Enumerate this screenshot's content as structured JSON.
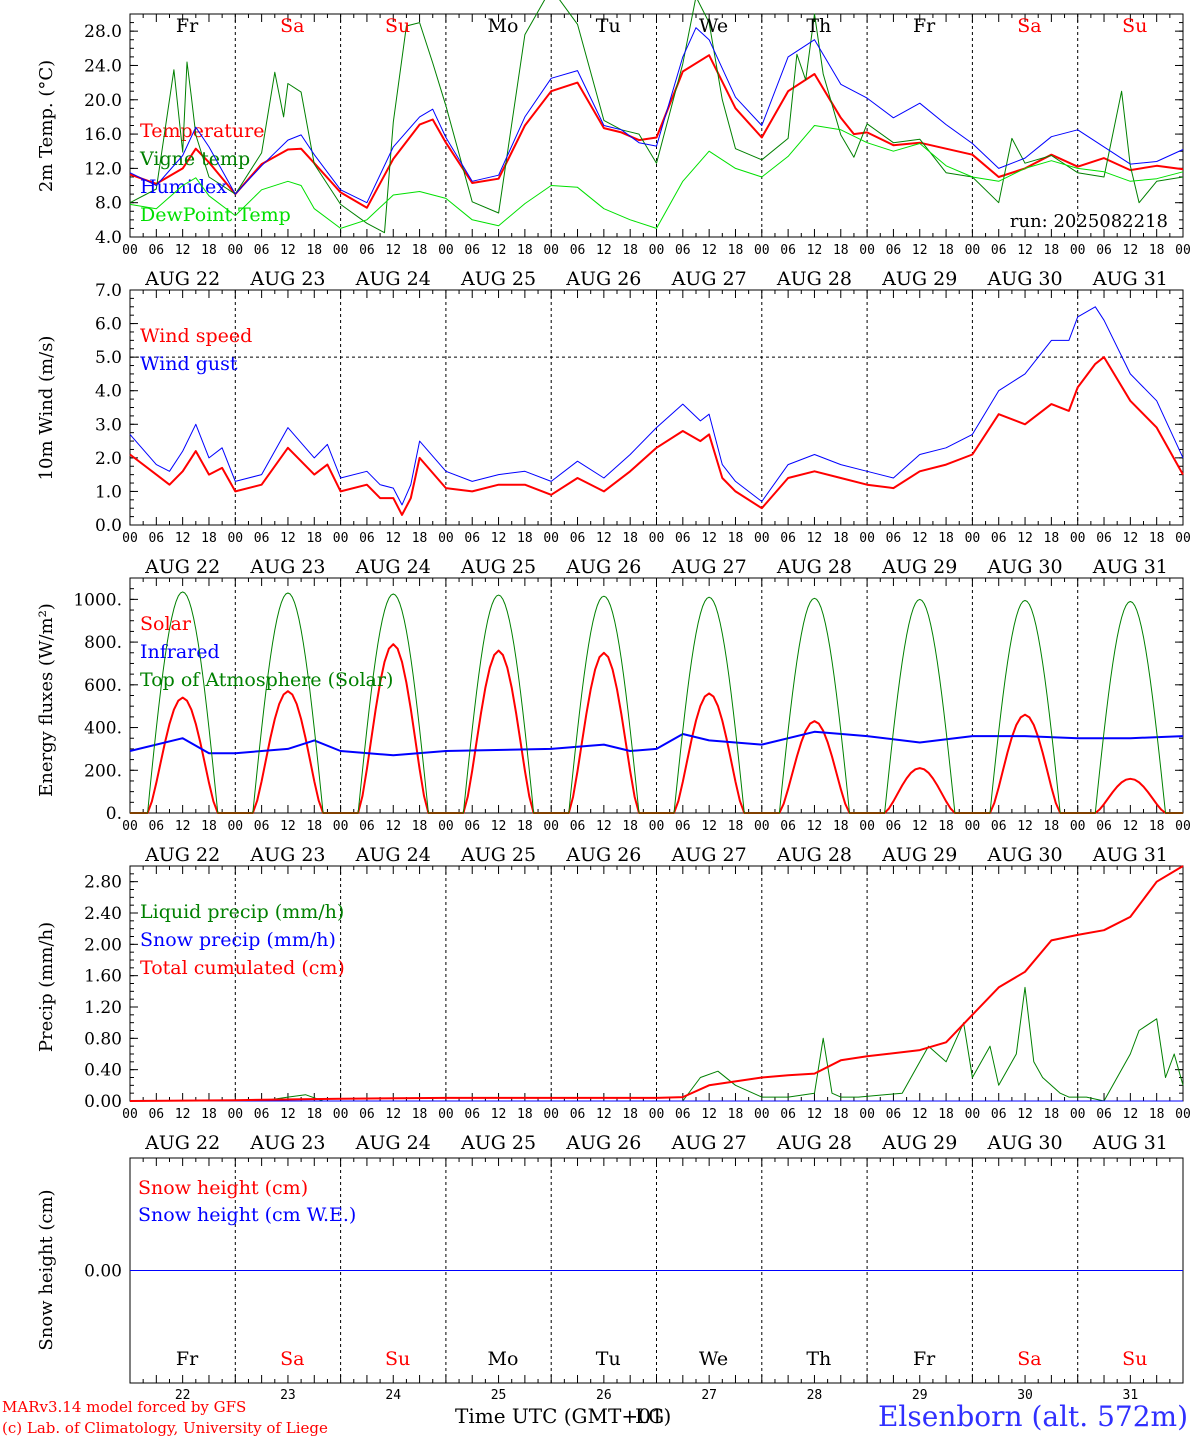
{
  "days": [
    "AUG 22",
    "AUG 23",
    "AUG 24",
    "AUG 25",
    "AUG 26",
    "AUG 27",
    "AUG 28",
    "AUG 29",
    "AUG 30",
    "AUG 31"
  ],
  "day_numbers": [
    "22",
    "23",
    "24",
    "25",
    "26",
    "27",
    "28",
    "29",
    "30",
    "31"
  ],
  "weekdays": [
    "Fr",
    "Sa",
    "Su",
    "Mo",
    "Tu",
    "We",
    "Th",
    "Fr",
    "Sa",
    "Su"
  ],
  "weekday_colors": [
    "#000000",
    "#ff0000",
    "#ff0000",
    "#000000",
    "#000000",
    "#000000",
    "#000000",
    "#000000",
    "#ff0000",
    "#ff0000"
  ],
  "hour_labels": [
    "00",
    "06",
    "12",
    "18"
  ],
  "hour_label_end": "00",
  "run_label": "run: 2025082218",
  "footer": {
    "model": "MARv3.14 model forced by GFS",
    "lab": "(c) Lab. of Climatology, University of Liege",
    "station": "Elsenborn (alt. 572m)",
    "xaxis_title": "Time UTC (GMT+01)",
    "xaxis_title_overlap": "LG"
  },
  "chart_data": [
    {
      "type": "line",
      "id": "temperature",
      "ylabel": "2m Temp. (°C)",
      "ylim": [
        4.0,
        30.0
      ],
      "yticks": [
        4.0,
        8.0,
        12.0,
        16.0,
        20.0,
        24.0,
        28.0
      ],
      "ytick_labels": [
        "4.0",
        "8.0",
        "12.0",
        "16.0",
        "20.0",
        "24.0",
        "28.0"
      ],
      "x_range_hours": [
        0,
        240
      ],
      "series": [
        {
          "name": "Temperature",
          "color": "#ff0000",
          "width": 2,
          "x": [
            0,
            6,
            12,
            15,
            18,
            24,
            30,
            36,
            39,
            42,
            48,
            54,
            60,
            66,
            69,
            72,
            78,
            84,
            90,
            96,
            102,
            108,
            112,
            116,
            120,
            126,
            132,
            138,
            144,
            150,
            156,
            162,
            165,
            168,
            174,
            180,
            186,
            192,
            198,
            204,
            210,
            216,
            222,
            228,
            234,
            240
          ],
          "y": [
            11.3,
            10.2,
            12.0,
            14.3,
            12.7,
            9.0,
            12.5,
            14.2,
            14.3,
            12.6,
            9.2,
            7.4,
            13.1,
            17.1,
            17.7,
            15.0,
            10.3,
            10.8,
            17.0,
            21.0,
            22.0,
            16.7,
            16.2,
            15.3,
            15.6,
            23.3,
            25.2,
            19.0,
            15.6,
            21.0,
            23.0,
            17.9,
            16.0,
            16.2,
            14.7,
            15.0,
            14.3,
            13.6,
            11.0,
            12.0,
            13.6,
            12.2,
            13.2,
            11.8,
            12.3,
            11.9
          ]
        },
        {
          "name": "Vigne temp",
          "color": "#008000",
          "width": 1,
          "x": [
            0,
            6,
            10,
            12,
            13,
            14,
            15,
            18,
            24,
            30,
            33,
            35,
            36,
            39,
            42,
            48,
            54,
            58,
            60,
            63,
            66,
            69,
            72,
            78,
            84,
            90,
            96,
            102,
            108,
            112,
            116,
            120,
            126,
            129,
            132,
            135,
            138,
            144,
            150,
            152,
            154,
            156,
            158,
            162,
            165,
            168,
            174,
            180,
            186,
            192,
            198,
            201,
            204,
            210,
            216,
            222,
            226,
            228,
            230,
            234,
            240
          ],
          "y": [
            8.0,
            9.6,
            23.5,
            13.9,
            24.4,
            20.3,
            15.9,
            11.0,
            9.0,
            13.8,
            23.2,
            18.0,
            21.9,
            20.9,
            12.5,
            7.8,
            5.6,
            4.5,
            17.4,
            28.6,
            29.0,
            24.3,
            19.3,
            8.1,
            6.8,
            27.6,
            33.0,
            28.8,
            17.6,
            16.5,
            16.0,
            12.6,
            24.2,
            32.0,
            29.0,
            20.0,
            14.3,
            13.0,
            15.5,
            25.3,
            22.3,
            30.0,
            23.0,
            15.9,
            13.3,
            17.2,
            15.0,
            15.4,
            11.5,
            11.0,
            8.0,
            15.5,
            12.6,
            13.5,
            11.5,
            11.0,
            21.0,
            12.3,
            8.0,
            10.5,
            11.0
          ]
        },
        {
          "name": "Humidex",
          "color": "#0000ff",
          "width": 1,
          "x": [
            0,
            6,
            12,
            15,
            18,
            24,
            30,
            36,
            39,
            42,
            48,
            54,
            60,
            66,
            69,
            72,
            78,
            84,
            90,
            96,
            102,
            108,
            112,
            116,
            120,
            126,
            129,
            132,
            138,
            144,
            150,
            156,
            162,
            168,
            174,
            180,
            186,
            192,
            198,
            204,
            210,
            216,
            222,
            228,
            234,
            240
          ],
          "y": [
            11.5,
            10.0,
            13.5,
            16.8,
            14.5,
            9.0,
            12.3,
            15.3,
            15.9,
            13.6,
            9.5,
            8.0,
            14.5,
            18.0,
            18.9,
            15.6,
            10.5,
            11.2,
            18.0,
            22.5,
            23.4,
            17.0,
            16.5,
            15.0,
            14.6,
            25.0,
            28.4,
            27.0,
            20.3,
            17.0,
            25.0,
            27.0,
            21.8,
            20.2,
            17.9,
            19.6,
            17.1,
            14.9,
            12.0,
            13.2,
            15.7,
            16.5,
            14.5,
            12.5,
            12.8,
            14.2
          ]
        },
        {
          "name": "DewPoint Temp",
          "color": "#00e000",
          "width": 1,
          "x": [
            0,
            6,
            12,
            15,
            18,
            24,
            30,
            36,
            39,
            42,
            48,
            54,
            60,
            66,
            72,
            78,
            84,
            90,
            96,
            102,
            108,
            114,
            120,
            126,
            132,
            138,
            144,
            150,
            156,
            162,
            168,
            174,
            180,
            186,
            192,
            198,
            204,
            210,
            216,
            222,
            228,
            234,
            240
          ],
          "y": [
            7.8,
            7.3,
            10.0,
            10.9,
            8.8,
            6.5,
            9.5,
            10.5,
            10.0,
            7.3,
            5.0,
            6.0,
            8.9,
            9.3,
            8.5,
            6.0,
            5.3,
            7.9,
            10.0,
            9.8,
            7.3,
            6.0,
            5.0,
            10.5,
            14.0,
            12.0,
            11.0,
            13.4,
            17.0,
            16.5,
            15.0,
            14.0,
            14.9,
            12.3,
            11.0,
            10.5,
            12.0,
            12.9,
            12.0,
            11.6,
            10.5,
            10.8,
            11.6
          ]
        }
      ]
    },
    {
      "type": "line",
      "id": "wind",
      "ylabel": "10m Wind (m/s)",
      "ylim": [
        0.0,
        7.0
      ],
      "yticks": [
        0,
        1,
        2,
        3,
        4,
        5,
        6,
        7
      ],
      "ytick_labels": [
        "0.0",
        "1.0",
        "2.0",
        "3.0",
        "4.0",
        "5.0",
        "6.0",
        "7.0"
      ],
      "reference_line": 5.0,
      "x_range_hours": [
        0,
        240
      ],
      "series": [
        {
          "name": "Wind speed",
          "color": "#ff0000",
          "width": 2,
          "x": [
            0,
            6,
            9,
            12,
            15,
            18,
            21,
            24,
            30,
            36,
            42,
            45,
            48,
            54,
            57,
            60,
            62,
            64,
            66,
            72,
            78,
            84,
            90,
            96,
            102,
            108,
            114,
            120,
            126,
            130,
            132,
            135,
            138,
            144,
            150,
            156,
            162,
            168,
            174,
            180,
            186,
            192,
            198,
            204,
            210,
            214,
            216,
            220,
            222,
            228,
            234,
            240
          ],
          "y": [
            2.1,
            1.5,
            1.2,
            1.6,
            2.2,
            1.5,
            1.7,
            1.0,
            1.2,
            2.3,
            1.5,
            1.8,
            1.0,
            1.2,
            0.8,
            0.8,
            0.3,
            0.8,
            2.0,
            1.1,
            1.0,
            1.2,
            1.2,
            0.9,
            1.4,
            1.0,
            1.6,
            2.3,
            2.8,
            2.5,
            2.7,
            1.4,
            1.0,
            0.5,
            1.4,
            1.6,
            1.4,
            1.2,
            1.1,
            1.6,
            1.8,
            2.1,
            3.3,
            3.0,
            3.6,
            3.4,
            4.1,
            4.8,
            5.0,
            3.7,
            2.9,
            1.5
          ]
        },
        {
          "name": "Wind gust",
          "color": "#0000ff",
          "width": 1,
          "x": [
            0,
            6,
            9,
            12,
            15,
            18,
            21,
            24,
            30,
            36,
            42,
            45,
            48,
            54,
            57,
            60,
            62,
            64,
            66,
            72,
            78,
            84,
            90,
            96,
            102,
            108,
            114,
            120,
            126,
            130,
            132,
            135,
            138,
            144,
            150,
            156,
            162,
            168,
            174,
            180,
            186,
            192,
            198,
            204,
            210,
            214,
            216,
            220,
            222,
            228,
            234,
            240
          ],
          "y": [
            2.7,
            1.8,
            1.6,
            2.2,
            3.0,
            2.0,
            2.3,
            1.3,
            1.5,
            2.9,
            2.0,
            2.4,
            1.4,
            1.6,
            1.2,
            1.1,
            0.6,
            1.2,
            2.5,
            1.6,
            1.3,
            1.5,
            1.6,
            1.3,
            1.9,
            1.4,
            2.1,
            2.9,
            3.6,
            3.1,
            3.3,
            1.8,
            1.3,
            0.7,
            1.8,
            2.1,
            1.8,
            1.6,
            1.4,
            2.1,
            2.3,
            2.7,
            4.0,
            4.5,
            5.5,
            5.5,
            6.2,
            6.5,
            6.1,
            4.5,
            3.7,
            2.0
          ]
        }
      ]
    },
    {
      "type": "line",
      "id": "energy",
      "ylabel": "Energy fluxes (W/m²)",
      "ylim": [
        0,
        1100
      ],
      "yticks": [
        0,
        200,
        400,
        600,
        800,
        1000
      ],
      "ytick_labels": [
        "0.",
        "200.",
        "400.",
        "600.",
        "800.",
        "1000."
      ],
      "x_range_hours": [
        0,
        240
      ],
      "series": [
        {
          "name": "Solar",
          "color": "#ff0000",
          "width": 2,
          "peaks": [
            {
              "day": 0,
              "max": 540
            },
            {
              "day": 1,
              "max": 570
            },
            {
              "day": 2,
              "max": 790
            },
            {
              "day": 3,
              "max": 760
            },
            {
              "day": 4,
              "max": 750
            },
            {
              "day": 5,
              "max": 560
            },
            {
              "day": 6,
              "max": 430
            },
            {
              "day": 7,
              "max": 210
            },
            {
              "day": 8,
              "max": 460
            },
            {
              "day": 9,
              "max": 160
            }
          ]
        },
        {
          "name": "Infrared",
          "color": "#0000ff",
          "width": 2,
          "x": [
            0,
            12,
            18,
            24,
            36,
            42,
            48,
            60,
            72,
            96,
            108,
            114,
            120,
            126,
            132,
            144,
            156,
            168,
            180,
            192,
            204,
            216,
            228,
            240
          ],
          "y": [
            290,
            350,
            280,
            280,
            300,
            340,
            290,
            270,
            290,
            300,
            320,
            290,
            300,
            370,
            340,
            320,
            380,
            360,
            330,
            360,
            360,
            350,
            350,
            360
          ]
        },
        {
          "name": "Top of Atmosphere (Solar)",
          "color": "#008000",
          "width": 1,
          "peak_values": [
            1035,
            1030,
            1025,
            1020,
            1015,
            1010,
            1005,
            1000,
            995,
            990
          ]
        }
      ]
    },
    {
      "type": "line",
      "id": "precip",
      "ylabel": "Precip (mm/h)",
      "ylim": [
        0.0,
        3.0
      ],
      "yticks": [
        0.0,
        0.4,
        0.8,
        1.2,
        1.6,
        2.0,
        2.4,
        2.8
      ],
      "ytick_labels": [
        "0.00",
        "0.40",
        "0.80",
        "1.20",
        "1.60",
        "2.00",
        "2.40",
        "2.80"
      ],
      "x_range_hours": [
        0,
        240
      ],
      "series": [
        {
          "name": "Liquid precip (mm/h)",
          "color": "#008000",
          "width": 1,
          "x": [
            0,
            30,
            36,
            40,
            44,
            48,
            126,
            130,
            134,
            138,
            144,
            150,
            156,
            158,
            160,
            162,
            166,
            176,
            182,
            186,
            190,
            192,
            196,
            198,
            202,
            204,
            206,
            208,
            212,
            214,
            218,
            222,
            228,
            230,
            234,
            236,
            238,
            240
          ],
          "y": [
            0,
            0,
            0.05,
            0.08,
            0,
            0,
            0,
            0.3,
            0.38,
            0.2,
            0.05,
            0.05,
            0.1,
            0.8,
            0.1,
            0.05,
            0.05,
            0.1,
            0.7,
            0.5,
            1.0,
            0.3,
            0.7,
            0.2,
            0.6,
            1.45,
            0.5,
            0.3,
            0.1,
            0.05,
            0.05,
            0,
            0.6,
            0.9,
            1.05,
            0.3,
            0.6,
            0.2
          ]
        },
        {
          "name": "Snow precip (mm/h)",
          "color": "#0000ff",
          "width": 1,
          "x": [
            0,
            240
          ],
          "y": [
            0,
            0
          ]
        },
        {
          "name": "Total cumulated (cm)",
          "color": "#ff0000",
          "width": 2,
          "x": [
            0,
            24,
            48,
            72,
            96,
            120,
            126,
            132,
            144,
            150,
            156,
            162,
            168,
            180,
            186,
            192,
            198,
            204,
            210,
            216,
            222,
            228,
            234,
            240
          ],
          "y": [
            0,
            0.01,
            0.03,
            0.04,
            0.04,
            0.04,
            0.05,
            0.2,
            0.3,
            0.33,
            0.35,
            0.52,
            0.57,
            0.65,
            0.75,
            1.1,
            1.45,
            1.65,
            2.05,
            2.12,
            2.18,
            2.35,
            2.8,
            3.0
          ]
        }
      ]
    },
    {
      "type": "line",
      "id": "snow",
      "ylabel": "Snow height (cm)",
      "ytick_labels": [
        "0.00"
      ],
      "x_range_hours": [
        0,
        240
      ],
      "series": [
        {
          "name": "Snow height (cm)",
          "color": "#ff0000",
          "width": 1,
          "x": [
            0,
            240
          ],
          "y": [
            0,
            0
          ]
        },
        {
          "name": "Snow height (cm W.E.)",
          "color": "#0000ff",
          "width": 1,
          "x": [
            0,
            240
          ],
          "y": [
            0,
            0
          ]
        }
      ]
    }
  ]
}
